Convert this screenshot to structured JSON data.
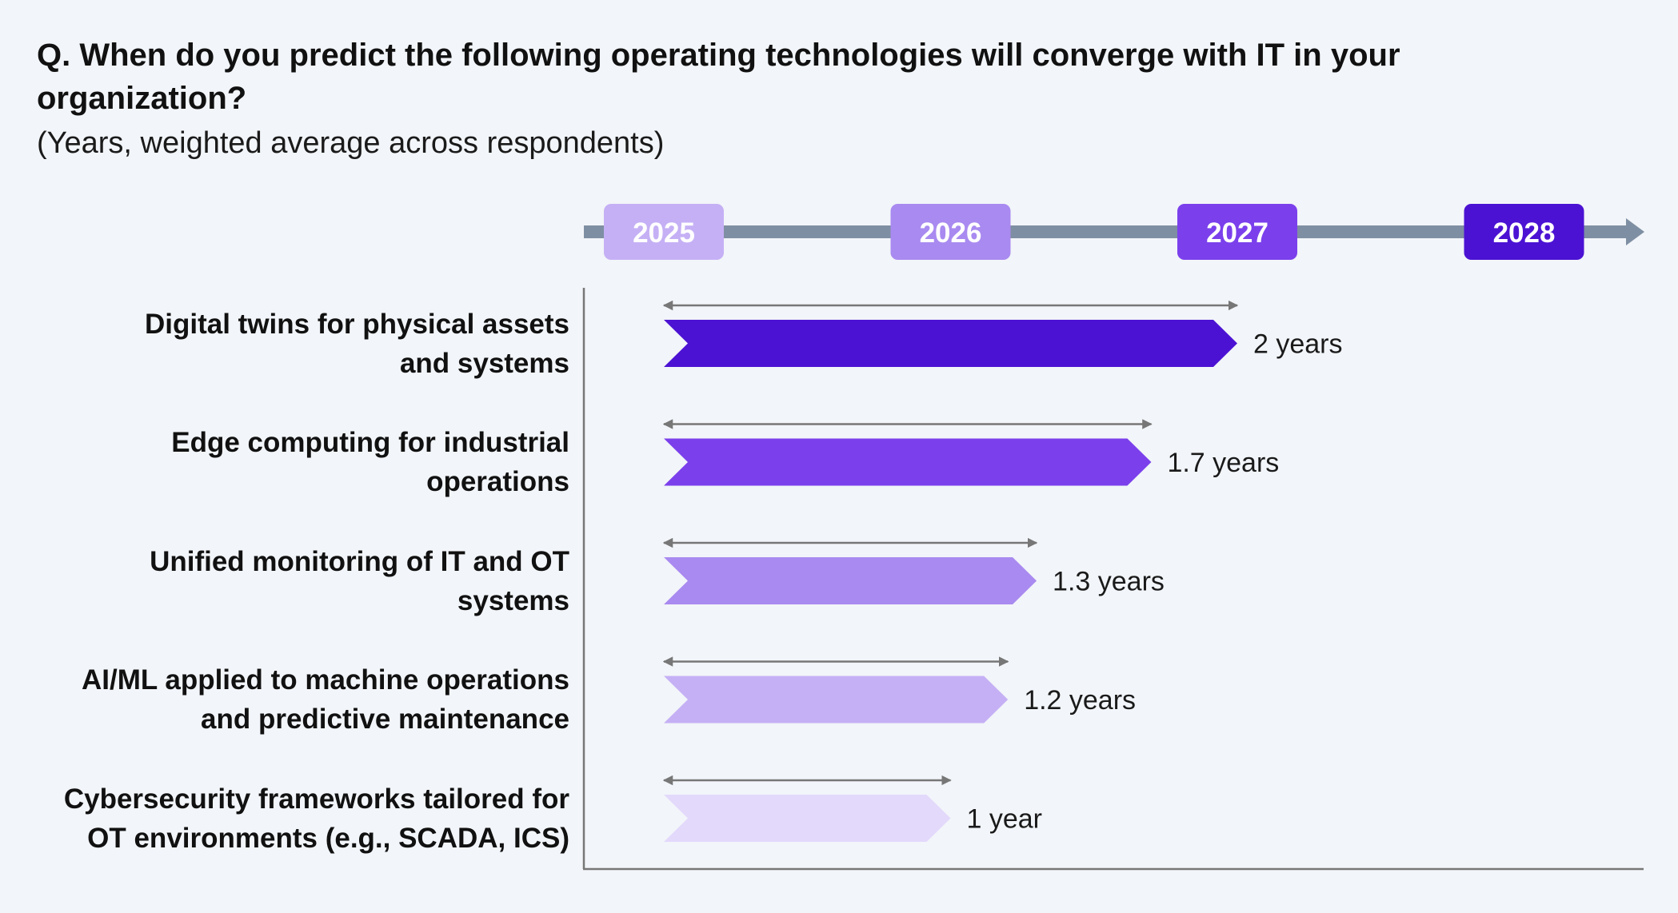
{
  "chart_data": {
    "type": "bar",
    "title": "Q. When do you predict the following operating technologies will converge with IT in your organization?",
    "subtitle": "(Years, weighted average across respondents)",
    "timeline": {
      "years": [
        "2025",
        "2026",
        "2027",
        "2028"
      ],
      "colors": [
        "#c5b0f5",
        "#a98af0",
        "#7b40ec",
        "#4c12d3"
      ],
      "axis_color": "#7f8fa3"
    },
    "categories": [
      "Digital twins for physical assets\nand systems",
      "Edge computing for industrial\noperations",
      "Unified monitoring of IT and OT\nsystems ",
      "AI/ML applied to machine operations\nand predictive maintenance",
      "Cybersecurity frameworks tailored for\nOT environments (e.g., SCADA, ICS)"
    ],
    "values": [
      2,
      1.7,
      1.3,
      1.2,
      1
    ],
    "value_labels": [
      "2 years",
      "1.7 years",
      "1.3 years",
      "1.2 years",
      "1 year"
    ],
    "bar_colors": [
      "#4c12d3",
      "#7b40ec",
      "#a98af0",
      "#c5b0f5",
      "#e3d9fb"
    ],
    "range_arrow_color": "#777777",
    "xlim": [
      2025,
      2028
    ]
  }
}
